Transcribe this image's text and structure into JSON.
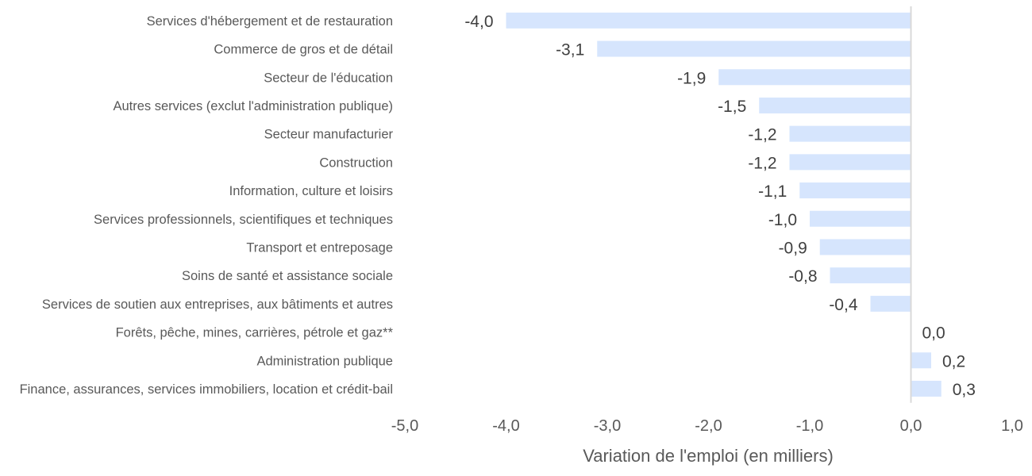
{
  "chart_data": {
    "type": "bar",
    "orientation": "horizontal",
    "categories": [
      "Services d'hébergement et de restauration",
      "Commerce de gros et de détail",
      "Secteur de l'éducation",
      "Autres services (exclut l'administration publique)",
      "Secteur manufacturier",
      "Construction",
      "Information, culture et loisirs",
      "Services professionnels, scientifiques et techniques",
      "Transport et entreposage",
      "Soins de santé et assistance sociale",
      "Services de soutien aux entreprises, aux bâtiments et autres",
      "Forêts, pêche, mines, carrières, pétrole et gaz**",
      "Administration publique",
      "Finance, assurances, services immobiliers, location et crédit-bail"
    ],
    "values": [
      -4.0,
      -3.1,
      -1.9,
      -1.5,
      -1.2,
      -1.2,
      -1.1,
      -1.0,
      -0.9,
      -0.8,
      -0.4,
      0.0,
      0.2,
      0.3
    ],
    "value_labels": [
      "-4,0",
      "-3,1",
      "-1,9",
      "-1,5",
      "-1,2",
      "-1,2",
      "-1,1",
      "-1,0",
      "-0,9",
      "-0,8",
      "-0,4",
      "0,0",
      "0,2",
      "0,3"
    ],
    "xlabel": "Variation de l'emploi (en milliers)",
    "ylabel": "",
    "xlim": [
      -5.0,
      1.0
    ],
    "xticks": [
      -5.0,
      -4.0,
      -3.0,
      -2.0,
      -1.0,
      0.0,
      1.0
    ],
    "xtick_labels": [
      "-5,0",
      "-4,0",
      "-3,0",
      "-2,0",
      "-1,0",
      "0,0",
      "1,0"
    ],
    "grid": false,
    "legend": "none",
    "bar_color": "#d6e5fd",
    "zero_line_color": "#d9d9d9"
  }
}
